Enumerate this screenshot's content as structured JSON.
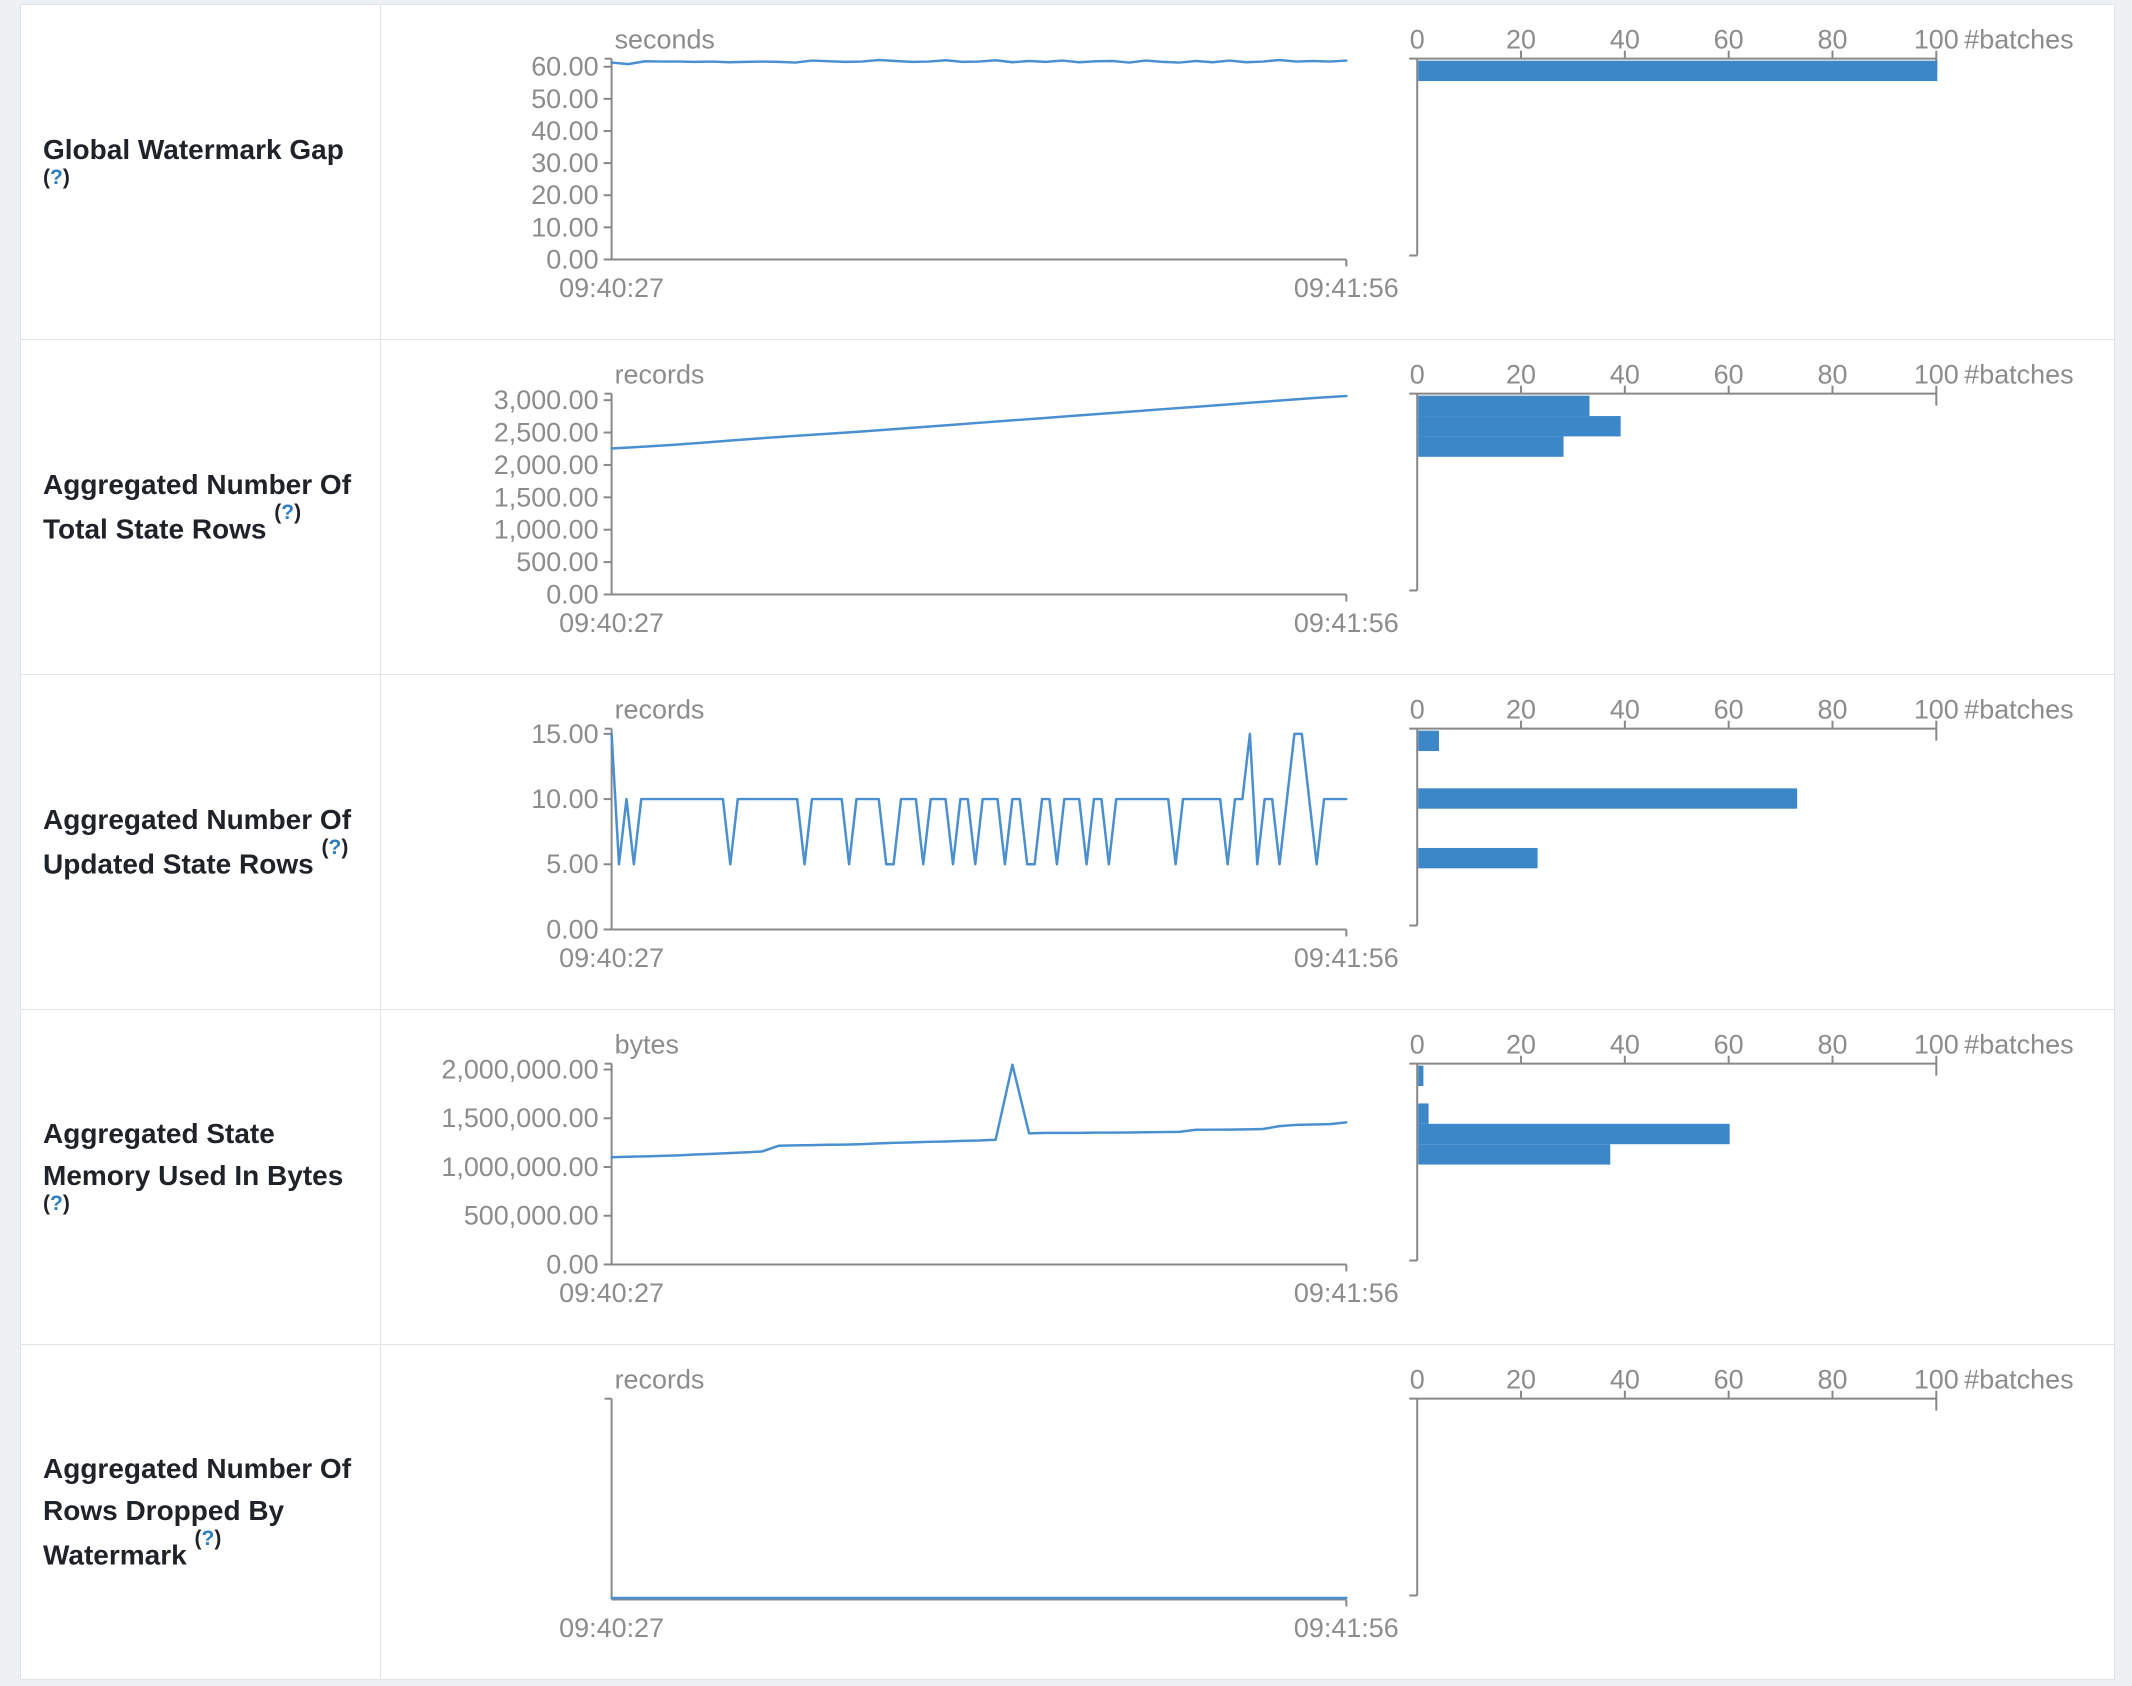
{
  "colors": {
    "line": "#4a90d0",
    "bar": "#3c87c8",
    "axis_line": "#888888",
    "axis_text": "#8c8c8c",
    "label_text": "#1f2328",
    "help_link": "#2e7dc0",
    "border": "#e0e4e7",
    "page_bg": "#eef1f3"
  },
  "help": {
    "open": "(",
    "q": "?",
    "close": ")"
  },
  "time_axis": {
    "start": "09:40:27",
    "end": "09:41:56"
  },
  "histogram_axis": {
    "ticks": [
      0,
      20,
      40,
      60,
      80,
      100
    ],
    "label": "#batches"
  },
  "chart_data": [
    {
      "type": "line",
      "title": "Global Watermark Gap",
      "unit": "seconds",
      "y_ticks": [
        0,
        10,
        20,
        30,
        40,
        50,
        60
      ],
      "y_tick_labels": [
        "0.00",
        "10.00",
        "20.00",
        "30.00",
        "40.00",
        "50.00",
        "60.00"
      ],
      "y_axis_max": 62.5,
      "x_start": "09:40:27",
      "x_end": "09:41:56",
      "timeline": [
        61.3,
        60.8,
        61.7,
        61.6,
        61.6,
        61.5,
        61.6,
        61.4,
        61.5,
        61.6,
        61.5,
        61.3,
        61.9,
        61.7,
        61.5,
        61.6,
        62.1,
        61.8,
        61.5,
        61.6,
        62.0,
        61.5,
        61.6,
        62.0,
        61.4,
        61.8,
        61.5,
        61.9,
        61.4,
        61.7,
        61.8,
        61.3,
        61.9,
        61.5,
        61.3,
        61.8,
        61.4,
        61.9,
        61.4,
        61.6,
        62.1,
        61.6,
        61.8,
        61.6,
        61.9
      ],
      "histogram_bars": [
        {
          "offset": 2,
          "count": 100
        }
      ]
    },
    {
      "type": "line",
      "title": "Aggregated Number Of Total State Rows",
      "unit": "records",
      "y_ticks": [
        0,
        500,
        1000,
        1500,
        2000,
        2500,
        3000
      ],
      "y_tick_labels": [
        "0.00",
        "500.00",
        "1,000.00",
        "1,500.00",
        "2,000.00",
        "2,500.00",
        "3,000.00"
      ],
      "y_axis_max": 3100,
      "x_start": "09:40:27",
      "x_end": "09:41:56",
      "timeline": [
        2255,
        2280,
        2310,
        2345,
        2380,
        2415,
        2450,
        2480,
        2510,
        2545,
        2580,
        2615,
        2650,
        2685,
        2720,
        2755,
        2790,
        2825,
        2860,
        2895,
        2930,
        2965,
        3000,
        3035,
        3065
      ],
      "histogram_bars": [
        {
          "offset": 2,
          "count": 33
        },
        {
          "offset": 22.5,
          "count": 39
        },
        {
          "offset": 43,
          "count": 28
        }
      ]
    },
    {
      "type": "line",
      "title": "Aggregated Number Of Updated State Rows",
      "unit": "records",
      "y_ticks": [
        0,
        5,
        10,
        15
      ],
      "y_tick_labels": [
        "0.00",
        "5.00",
        "10.00",
        "15.00"
      ],
      "y_axis_max": 15.4,
      "x_start": "09:40:27",
      "x_end": "09:41:56",
      "timeline": [
        15,
        5,
        10,
        5,
        10,
        10,
        10,
        10,
        10,
        10,
        10,
        10,
        10,
        10,
        10,
        10,
        5,
        10,
        10,
        10,
        10,
        10,
        10,
        10,
        10,
        10,
        5,
        10,
        10,
        10,
        10,
        10,
        5,
        10,
        10,
        10,
        10,
        5,
        5,
        10,
        10,
        10,
        5,
        10,
        10,
        10,
        5,
        10,
        10,
        5,
        10,
        10,
        10,
        5,
        10,
        10,
        5,
        5,
        10,
        10,
        5,
        10,
        10,
        10,
        5,
        10,
        10,
        5,
        10,
        10,
        10,
        10,
        10,
        10,
        10,
        10,
        5,
        10,
        10,
        10,
        10,
        10,
        10,
        5,
        10,
        10,
        15,
        5,
        10,
        10,
        5,
        10,
        15,
        15,
        10,
        5,
        10,
        10,
        10,
        10
      ],
      "histogram_bars": [
        {
          "offset": 2,
          "count": 4
        },
        {
          "offset": 60,
          "count": 73
        },
        {
          "offset": 120,
          "count": 23
        }
      ]
    },
    {
      "type": "line",
      "title": "Aggregated State Memory Used In Bytes",
      "unit": "bytes",
      "y_ticks": [
        0,
        500000,
        1000000,
        1500000,
        2000000
      ],
      "y_tick_labels": [
        "0.00",
        "500,000.00",
        "1,000,000.00",
        "1,500,000.00",
        "2,000,000.00"
      ],
      "y_axis_max": 2060000,
      "x_start": "09:40:27",
      "x_end": "09:41:56",
      "timeline": [
        1100000,
        1105000,
        1110000,
        1115000,
        1120000,
        1128000,
        1135000,
        1142000,
        1150000,
        1158000,
        1218000,
        1222000,
        1225000,
        1228000,
        1230000,
        1235000,
        1242000,
        1248000,
        1252000,
        1258000,
        1262000,
        1268000,
        1272000,
        1280000,
        2050000,
        1345000,
        1350000,
        1350000,
        1350000,
        1352000,
        1352000,
        1354000,
        1356000,
        1358000,
        1360000,
        1382000,
        1383000,
        1384000,
        1386000,
        1390000,
        1420000,
        1432000,
        1436000,
        1440000,
        1458000
      ],
      "histogram_bars": [
        {
          "offset": 2,
          "count": 1
        },
        {
          "offset": 40,
          "count": 2
        },
        {
          "offset": 60.5,
          "count": 60
        },
        {
          "offset": 81,
          "count": 37
        }
      ]
    },
    {
      "type": "line",
      "title": "Aggregated Number Of Rows Dropped By Watermark",
      "unit": "records",
      "y_ticks": [],
      "y_tick_labels": [],
      "y_axis_max": 1,
      "x_start": "09:40:27",
      "x_end": "09:41:56",
      "timeline": [
        0,
        0
      ],
      "histogram_bars": []
    }
  ]
}
